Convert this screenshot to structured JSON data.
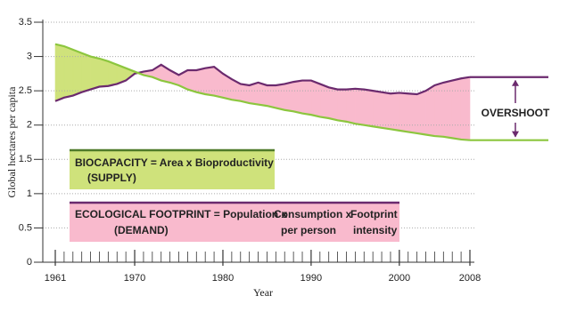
{
  "chart_data": {
    "type": "line",
    "y_label": "Global hectares per capita",
    "x_label": "Year",
    "x": [
      1961,
      1962,
      1963,
      1964,
      1965,
      1966,
      1967,
      1968,
      1969,
      1970,
      1971,
      1972,
      1973,
      1974,
      1975,
      1976,
      1977,
      1978,
      1979,
      1980,
      1981,
      1982,
      1983,
      1984,
      1985,
      1986,
      1987,
      1988,
      1989,
      1990,
      1991,
      1992,
      1993,
      1994,
      1995,
      1996,
      1997,
      1998,
      1999,
      2000,
      2001,
      2002,
      2003,
      2004,
      2005,
      2006,
      2007,
      2008
    ],
    "series": [
      {
        "color": "#6b2a6e",
        "values": [
          2.35,
          2.4,
          2.43,
          2.48,
          2.52,
          2.56,
          2.57,
          2.6,
          2.65,
          2.75,
          2.78,
          2.8,
          2.88,
          2.8,
          2.73,
          2.8,
          2.8,
          2.83,
          2.85,
          2.75,
          2.67,
          2.6,
          2.58,
          2.62,
          2.58,
          2.58,
          2.6,
          2.63,
          2.65,
          2.65,
          2.6,
          2.55,
          2.52,
          2.52,
          2.53,
          2.52,
          2.5,
          2.48,
          2.46,
          2.47,
          2.46,
          2.45,
          2.5,
          2.58,
          2.62,
          2.65,
          2.68,
          2.7
        ]
      },
      {
        "color": "#8cc63e",
        "values": [
          3.18,
          3.15,
          3.1,
          3.05,
          3.0,
          2.97,
          2.93,
          2.88,
          2.83,
          2.78,
          2.73,
          2.7,
          2.65,
          2.62,
          2.58,
          2.52,
          2.48,
          2.45,
          2.43,
          2.4,
          2.37,
          2.35,
          2.32,
          2.3,
          2.28,
          2.25,
          2.22,
          2.2,
          2.17,
          2.15,
          2.12,
          2.1,
          2.07,
          2.05,
          2.02,
          2.0,
          1.98,
          1.96,
          1.94,
          1.92,
          1.9,
          1.88,
          1.86,
          1.84,
          1.83,
          1.81,
          1.79,
          1.78
        ]
      }
    ],
    "overshoot_color": "#f9bacd",
    "surplus_color": "#cfe27b",
    "xlim": [
      1961,
      2008
    ],
    "xticks": [
      1961,
      1970,
      1980,
      1990,
      2000,
      2008
    ],
    "ylim": [
      0,
      3.5
    ],
    "yticks": [
      0,
      0.5,
      1,
      1.5,
      2,
      2.5,
      3,
      3.5
    ],
    "grid": true,
    "annotation": "OVERSHOOT",
    "biocapacity_box": {
      "line1": "BIOCAPACITY = Area x Bioproductivity",
      "line2": "(SUPPLY)"
    },
    "footprint_box": {
      "part1": "ECOLOGICAL FOOTPRINT = Population x",
      "part2": "Consumption x",
      "part3": "Footprint",
      "demand": "(DEMAND)",
      "per_person": "per person",
      "intensity": "intensity"
    }
  }
}
